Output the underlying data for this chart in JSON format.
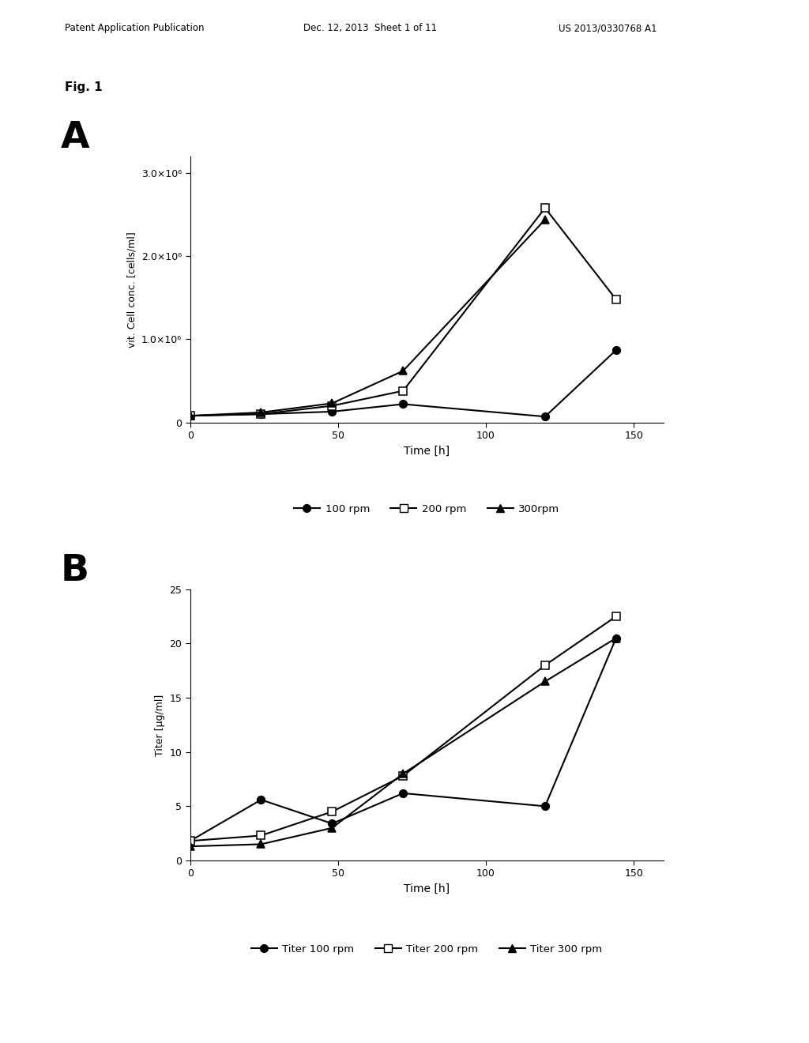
{
  "panel_A": {
    "ylabel": "vit. Cell conc. [cells/ml]",
    "xlabel": "Time [h]",
    "xlim": [
      0,
      160
    ],
    "ylim": [
      0,
      3200000
    ],
    "yticks": [
      0,
      1000000,
      2000000,
      3000000
    ],
    "ytick_labels": [
      "0",
      "1.0×10⁶",
      "2.0×10⁶",
      "3.0×10⁶"
    ],
    "xticks": [
      0,
      50,
      100,
      150
    ],
    "series": [
      {
        "label": "100 rpm",
        "x": [
          0,
          24,
          48,
          72,
          120,
          144
        ],
        "y": [
          80000,
          100000,
          130000,
          220000,
          70000,
          870000
        ],
        "marker": "o",
        "fillstyle": "full"
      },
      {
        "label": "200 rpm",
        "x": [
          0,
          24,
          48,
          72,
          120,
          144
        ],
        "y": [
          80000,
          100000,
          200000,
          380000,
          2580000,
          1480000
        ],
        "marker": "s",
        "fillstyle": "none"
      },
      {
        "label": "300rpm",
        "x": [
          0,
          24,
          48,
          72,
          120
        ],
        "y": [
          80000,
          120000,
          230000,
          620000,
          2440000
        ],
        "marker": "^",
        "fillstyle": "full"
      }
    ]
  },
  "panel_B": {
    "ylabel": "Titer [µg/ml]",
    "xlabel": "Time [h]",
    "xlim": [
      0,
      160
    ],
    "ylim": [
      0,
      25
    ],
    "yticks": [
      0,
      5,
      10,
      15,
      20,
      25
    ],
    "xticks": [
      0,
      50,
      100,
      150
    ],
    "series": [
      {
        "label": "Titer 100 rpm",
        "x": [
          0,
          24,
          48,
          72,
          120,
          144
        ],
        "y": [
          1.8,
          5.6,
          3.4,
          6.2,
          5.0,
          20.5
        ],
        "marker": "o",
        "fillstyle": "full"
      },
      {
        "label": "Titer 200 rpm",
        "x": [
          0,
          24,
          48,
          72,
          120,
          144
        ],
        "y": [
          1.8,
          2.3,
          4.5,
          7.8,
          18.0,
          22.5
        ],
        "marker": "s",
        "fillstyle": "none"
      },
      {
        "label": "Titer 300 rpm",
        "x": [
          0,
          24,
          48,
          72,
          120,
          144
        ],
        "y": [
          1.3,
          1.5,
          3.0,
          8.0,
          16.5,
          20.5
        ],
        "marker": "^",
        "fillstyle": "full"
      }
    ]
  },
  "background_color": "#ffffff",
  "line_width": 1.5,
  "marker_size": 7
}
